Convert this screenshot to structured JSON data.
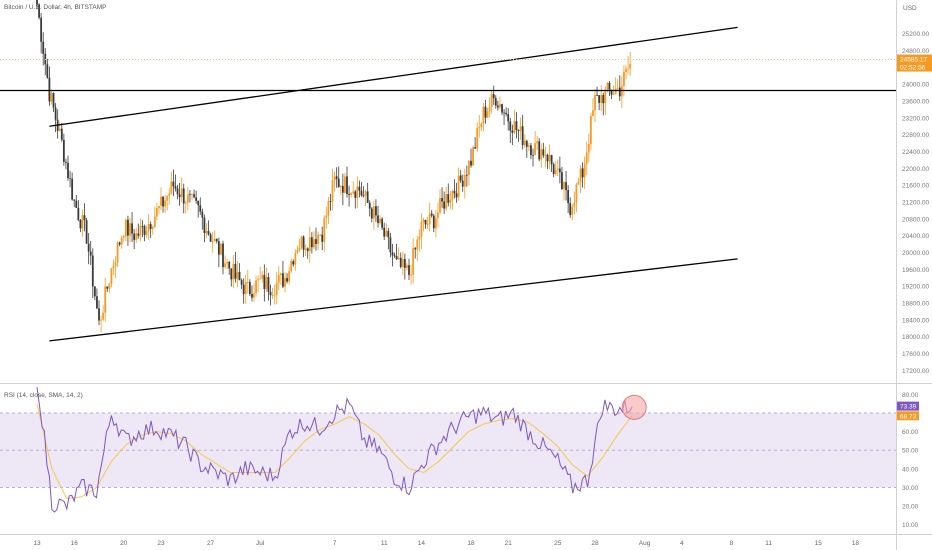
{
  "header": {
    "symbol_title": "Bitcoin / U.S. Dollar, 4h, BITSTAMP",
    "currency": "USD"
  },
  "colors": {
    "up": "#f59a23",
    "down": "#3a3a3a",
    "rsi_line": "#7e57c2",
    "rsi_ma": "#f7c948",
    "rsi_band": "#ede7f6",
    "price_tag": "#f59a23",
    "rsi_tag": "#7e57c2",
    "trend_lines": "#000000",
    "highlight_circle": "#f4a6a6"
  },
  "chart_data": [
    {
      "type": "candlestick",
      "title": "Bitcoin / U.S. Dollar, 4h, BITSTAMP",
      "ylabel": "USD",
      "ylim": [
        16900,
        26000
      ],
      "y_ticks": [
        "25200.00",
        "24800.00",
        "24400.00",
        "24000.00",
        "23600.00",
        "23200.00",
        "22800.00",
        "22400.00",
        "22000.00",
        "21600.00",
        "21200.00",
        "20800.00",
        "20400.00",
        "20000.00",
        "19600.00",
        "19200.00",
        "18800.00",
        "18400.00",
        "18000.00",
        "17600.00",
        "17200.00"
      ],
      "x_ticks": [
        "13",
        "16",
        "20",
        "23",
        "27",
        "Jul",
        "7",
        "11",
        "14",
        "18",
        "21",
        "25",
        "28",
        "Aug",
        "4",
        "8",
        "11",
        "15",
        "18"
      ],
      "close_path": [
        [
          "13",
          25900
        ],
        [
          "14",
          23800
        ],
        [
          "15",
          22600
        ],
        [
          "16",
          21200
        ],
        [
          "17",
          20400
        ],
        [
          "18",
          18300
        ],
        [
          "19",
          19600
        ],
        [
          "20",
          20600
        ],
        [
          "21",
          20400
        ],
        [
          "22",
          20700
        ],
        [
          "23",
          21100
        ],
        [
          "24",
          21600
        ],
        [
          "25",
          21300
        ],
        [
          "26",
          21000
        ],
        [
          "27",
          20400
        ],
        [
          "28",
          19900
        ],
        [
          "29",
          19400
        ],
        [
          "30",
          19100
        ],
        [
          "Jul 1",
          19300
        ],
        [
          "Jul 2",
          19200
        ],
        [
          "Jul 3",
          19400
        ],
        [
          "Jul 4",
          20200
        ],
        [
          "Jul 5",
          20300
        ],
        [
          "Jul 6",
          20500
        ],
        [
          "Jul 7",
          21700
        ],
        [
          "Jul 8",
          21600
        ],
        [
          "Jul 9",
          21500
        ],
        [
          "Jul 10",
          21000
        ],
        [
          "Jul 11",
          20400
        ],
        [
          "Jul 12",
          19700
        ],
        [
          "Jul 13",
          19500
        ],
        [
          "Jul 14",
          20600
        ],
        [
          "Jul 15",
          20800
        ],
        [
          "Jul 16",
          21300
        ],
        [
          "Jul 17",
          21600
        ],
        [
          "Jul 18",
          22200
        ],
        [
          "Jul 19",
          23300
        ],
        [
          "Jul 20",
          23700
        ],
        [
          "Jul 21",
          23200
        ],
        [
          "Jul 22",
          22800
        ],
        [
          "Jul 23",
          22500
        ],
        [
          "Jul 24",
          22400
        ],
        [
          "Jul 25",
          21800
        ],
        [
          "Jul 26",
          21100
        ],
        [
          "Jul 27",
          21900
        ],
        [
          "Jul 28",
          23600
        ],
        [
          "Jul 29",
          23800
        ],
        [
          "Jul 30",
          23900
        ],
        [
          "Jul 31",
          24585.17
        ]
      ],
      "horizontal_line": 23850,
      "channel_upper": {
        "from": [
          "14",
          23000
        ],
        "to": [
          "8",
          25350
        ]
      },
      "channel_lower": {
        "from": [
          "14",
          17900
        ],
        "to": [
          "8",
          19850
        ]
      },
      "last_price": "24585.17",
      "countdown": "02:52:56"
    },
    {
      "type": "line",
      "title": "RSI (14, close, SMA, 14, 2)",
      "ylim": [
        5,
        85
      ],
      "y_ticks": [
        "80.00",
        "60.00",
        "50.00",
        "40.00",
        "30.00",
        "20.00",
        "10.00"
      ],
      "band": [
        30,
        70
      ],
      "midline": 50,
      "series": [
        {
          "name": "RSI",
          "values": [
            90,
            22,
            20,
            30,
            28,
            70,
            55,
            60,
            62,
            58,
            52,
            42,
            38,
            34,
            40,
            38,
            36,
            60,
            65,
            62,
            70,
            74,
            55,
            50,
            36,
            30,
            44,
            54,
            62,
            68,
            70,
            66,
            70,
            60,
            52,
            44,
            30,
            34,
            74,
            72,
            73.39
          ]
        },
        {
          "name": "RSI-based MA",
          "values": [
            75,
            40,
            24,
            25,
            30,
            44,
            53,
            58,
            60,
            59,
            55,
            48,
            43,
            38,
            38,
            38,
            38,
            46,
            55,
            61,
            64,
            68,
            64,
            58,
            48,
            40,
            38,
            44,
            52,
            60,
            64,
            66,
            67,
            65,
            59,
            52,
            42,
            36,
            46,
            58,
            68.73
          ]
        }
      ],
      "last_rsi": "73.39",
      "last_ma": "68.73"
    }
  ]
}
